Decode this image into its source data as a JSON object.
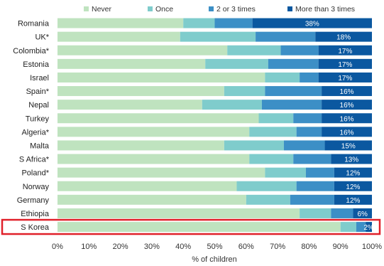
{
  "chart_data": {
    "type": "bar",
    "orientation": "horizontal",
    "stacked": true,
    "percent_stacked": true,
    "categories": [
      "Romania",
      "UK*",
      "Colombia*",
      "Estonia",
      "Israel",
      "Spain*",
      "Nepal",
      "Turkey",
      "Algeria*",
      "Malta",
      "S Africa*",
      "Poland*",
      "Norway",
      "Germany",
      "Ethiopia",
      "S Korea"
    ],
    "series": [
      {
        "name": "Never",
        "color": "#bfe3bf",
        "values": [
          40,
          39,
          54,
          47,
          66,
          53,
          46,
          64,
          61,
          53,
          61,
          66,
          57,
          60,
          77,
          90
        ]
      },
      {
        "name": "Once",
        "color": "#7fcccc",
        "values": [
          10,
          24,
          17,
          20,
          11,
          13,
          19,
          11,
          15,
          19,
          14,
          13,
          19,
          14,
          10,
          5
        ]
      },
      {
        "name": "2 or 3 times",
        "color": "#3c8fc6",
        "values": [
          12,
          19,
          12,
          16,
          6,
          18,
          19,
          9,
          8,
          13,
          12,
          9,
          12,
          14,
          7,
          3
        ]
      },
      {
        "name": "More than 3 times",
        "color": "#0b58a0",
        "values": [
          38,
          18,
          17,
          17,
          17,
          16,
          16,
          16,
          16,
          15,
          13,
          12,
          12,
          12,
          6,
          2
        ]
      }
    ],
    "data_labels": [
      "38%",
      "18%",
      "17%",
      "17%",
      "17%",
      "16%",
      "16%",
      "16%",
      "16%",
      "15%",
      "13%",
      "12%",
      "12%",
      "12%",
      "6%",
      "2%"
    ],
    "x_ticks": [
      "0%",
      "10%",
      "20%",
      "30%",
      "40%",
      "50%",
      "60%",
      "70%",
      "80%",
      "90%",
      "100%"
    ],
    "xlim": [
      0,
      100
    ],
    "xlabel": "% of children",
    "legend_position": "top",
    "grid": false,
    "highlighted_category": "S Korea",
    "highlight_color": "#e0202a"
  }
}
